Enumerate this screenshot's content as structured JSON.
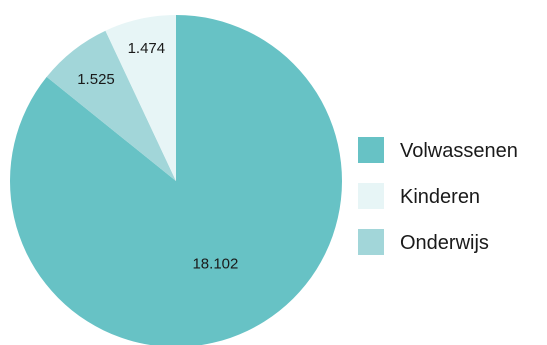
{
  "chart_data": {
    "type": "pie",
    "title": "",
    "slices": [
      {
        "name": "Volwassenen",
        "value": 18102,
        "label": "18.102",
        "color": "#67c2c5"
      },
      {
        "name": "Kinderen",
        "value": 1474,
        "label": "1.474",
        "color": "#e7f5f6"
      },
      {
        "name": "Onderwijs",
        "value": 1525,
        "label": "1.525",
        "color": "#a2d6d9"
      }
    ],
    "legend": {
      "position": "right",
      "items": [
        "Volwassenen",
        "Kinderen",
        "Onderwijs"
      ]
    }
  }
}
